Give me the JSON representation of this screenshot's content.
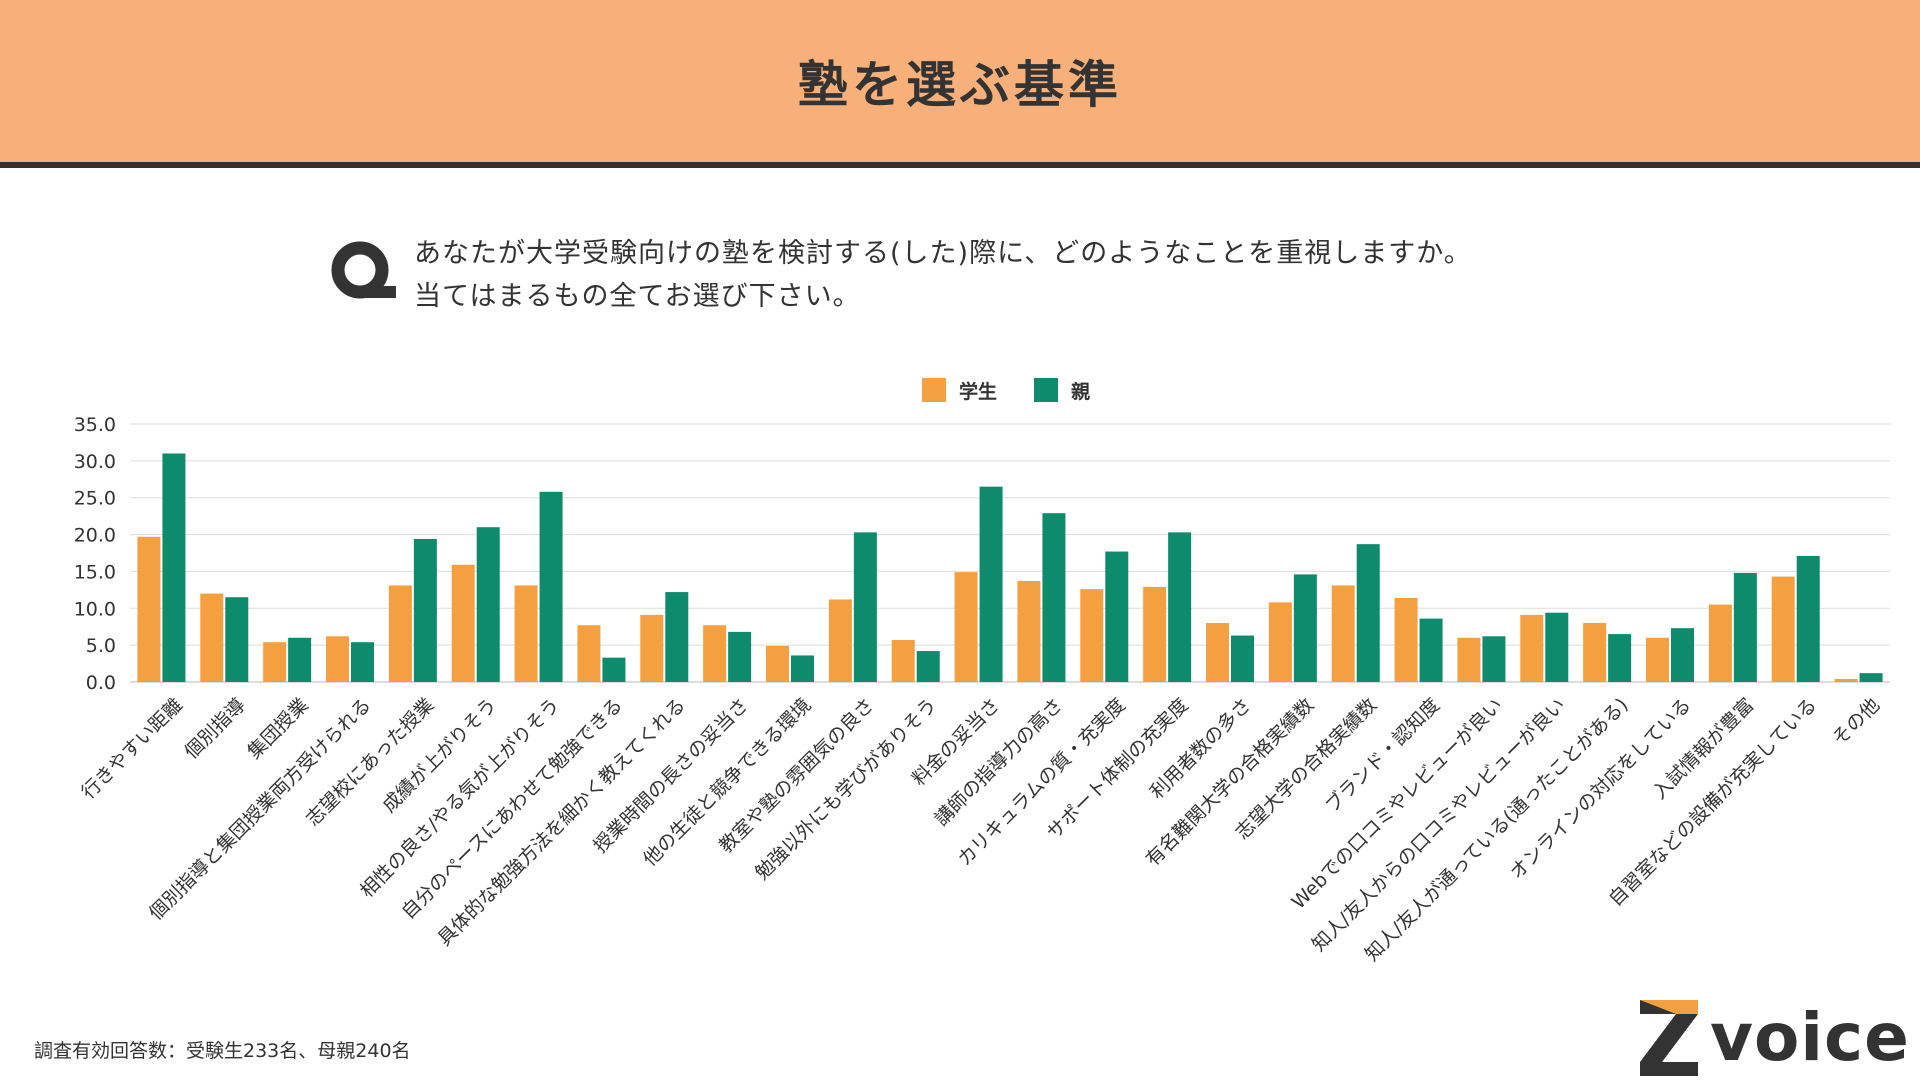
{
  "header": {
    "title": "塾を選ぶ基準"
  },
  "question": {
    "line1": "あなたが大学受験向けの塾を検討する(した)際に、どのようなことを重視しますか。",
    "line2": "当てはまるもの全てお選び下さい。"
  },
  "footnote": "調査有効回答数：受験生233名、母親240名",
  "logo": {
    "text": "voice"
  },
  "colors": {
    "header_bg": "#f8b07b",
    "student": "#f5a040",
    "parent": "#0e8a6c",
    "text": "#333333",
    "grid": "#dddddd"
  },
  "chart_data": {
    "type": "bar",
    "title": "",
    "xlabel": "",
    "ylabel": "",
    "ylim": [
      0,
      35
    ],
    "yticks": [
      "35.0",
      "30.0",
      "25.0",
      "20.0",
      "15.0",
      "10.0",
      "5.0",
      "0.0"
    ],
    "ytick_values": [
      35,
      30,
      25,
      20,
      15,
      10,
      5,
      0
    ],
    "legend_position": "top-center",
    "categories": [
      "行きやすい距離",
      "個別指導",
      "集団授業",
      "個別指導と集団授業両方受けられる",
      "志望校にあった授業",
      "成績が上がりそう",
      "相性の良さ/やる気が上がりそう",
      "自分のペースにあわせて勉強できる",
      "具体的な勉強方法を細かく教えてくれる",
      "授業時間の長さの妥当さ",
      "他の生徒と競争できる環境",
      "教室や塾の雰囲気の良さ",
      "勉強以外にも学びがありそう",
      "料金の妥当さ",
      "講師の指導力の高さ",
      "カリキュラムの質・充実度",
      "サポート体制の充実度",
      "利用者数の多さ",
      "有名難関大学の合格実績数",
      "志望大学の合格実績数",
      "ブランド・認知度",
      "Webでの口コミやレビューが良い",
      "知人/友人からの口コミやレビューが良い",
      "知人/友人が通っている(通ったことがある)",
      "オンラインの対応をしている",
      "入試情報が豊富",
      "自習室などの設備が充実している",
      "その他"
    ],
    "series": [
      {
        "name": "学生",
        "values": [
          19.7,
          12.0,
          5.4,
          6.2,
          13.1,
          15.9,
          13.1,
          7.7,
          9.1,
          7.7,
          4.9,
          11.2,
          5.7,
          14.9,
          13.7,
          12.6,
          12.9,
          8.0,
          10.8,
          13.1,
          11.4,
          6.0,
          9.1,
          8.0,
          6.0,
          10.5,
          14.3,
          0.4
        ]
      },
      {
        "name": "親",
        "values": [
          31.0,
          11.5,
          6.0,
          5.4,
          19.4,
          21.0,
          25.8,
          3.3,
          12.2,
          6.8,
          3.6,
          20.3,
          4.2,
          26.5,
          22.9,
          17.7,
          20.3,
          6.3,
          14.6,
          18.7,
          8.6,
          6.2,
          9.4,
          6.5,
          7.3,
          14.8,
          17.1,
          1.2
        ]
      }
    ]
  }
}
